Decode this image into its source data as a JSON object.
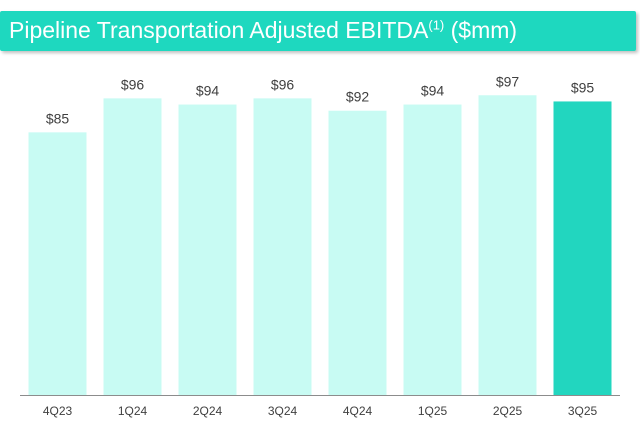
{
  "title": {
    "main": "Pipeline Transportation Adjusted EBITDA",
    "superscript": "(1)",
    "suffix": " ($mm)"
  },
  "colors": {
    "title_bar": "#1ed8bf",
    "bar_default": "#c8fbf3",
    "bar_highlight": "#22d6bf",
    "axis": "#8c8c8c",
    "label": "#404040"
  },
  "chart_data": {
    "type": "bar",
    "categories": [
      "4Q23",
      "1Q24",
      "2Q24",
      "3Q24",
      "4Q24",
      "1Q25",
      "2Q25",
      "3Q25"
    ],
    "values": [
      85,
      96,
      94,
      96,
      92,
      94,
      97,
      95
    ],
    "data_labels": [
      "$85",
      "$96",
      "$94",
      "$96",
      "$92",
      "$94",
      "$97",
      "$95"
    ],
    "highlight_index": 7,
    "ylim": [
      0,
      100
    ],
    "grid": false,
    "legend": "none"
  }
}
